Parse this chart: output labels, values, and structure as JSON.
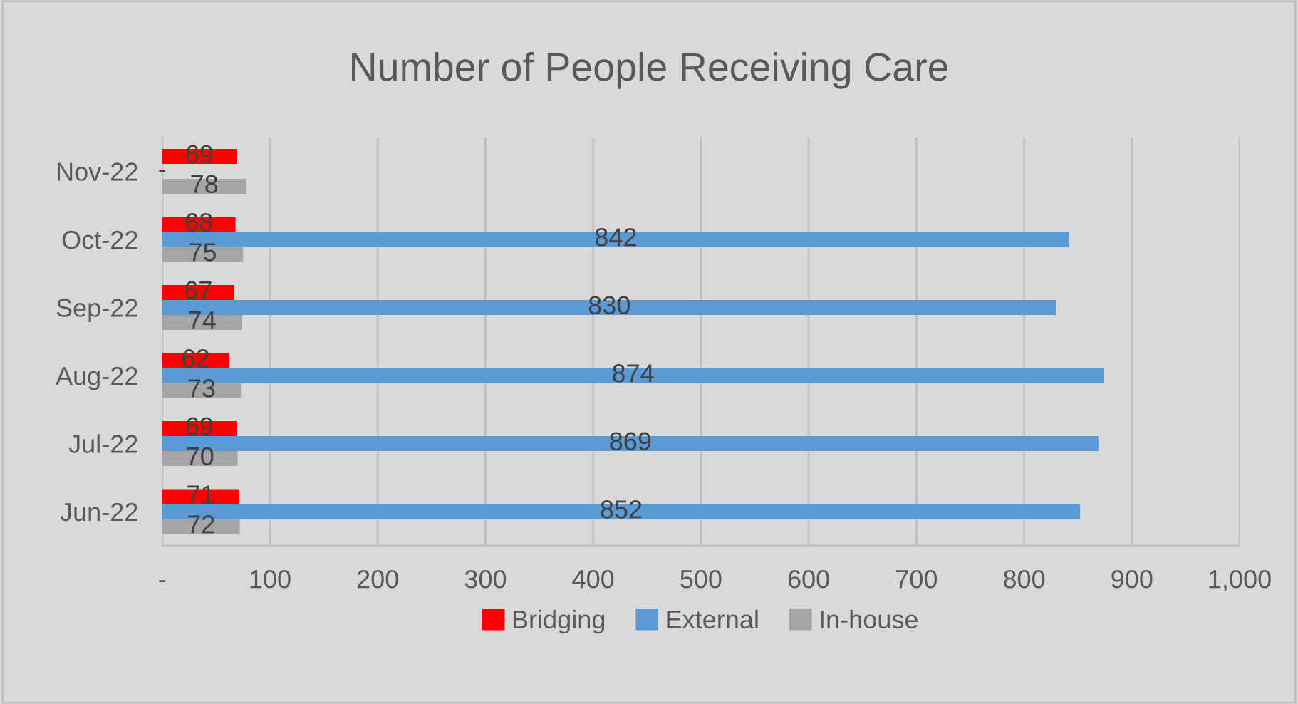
{
  "chart_data": {
    "type": "bar",
    "orientation": "horizontal",
    "title": "Number of People Receiving Care",
    "categories": [
      "Nov-22",
      "Oct-22",
      "Sep-22",
      "Aug-22",
      "Jul-22",
      "Jun-22"
    ],
    "series": [
      {
        "name": "Bridging",
        "color": "#ff0000",
        "values": [
          69,
          68,
          67,
          62,
          69,
          71
        ]
      },
      {
        "name": "External",
        "color": "#5b9bd5",
        "values": [
          0,
          842,
          830,
          874,
          869,
          852
        ],
        "value_labels": [
          "-",
          "842",
          "830",
          "874",
          "869",
          "852"
        ]
      },
      {
        "name": "In-house",
        "color": "#a5a5a5",
        "values": [
          78,
          75,
          74,
          73,
          70,
          72
        ]
      }
    ],
    "xlim": [
      0,
      1000
    ],
    "xticks": [
      {
        "value": 0,
        "label": "-"
      },
      100,
      200,
      300,
      400,
      500,
      600,
      700,
      800,
      900,
      {
        "value": 1000,
        "label": "1,000"
      }
    ],
    "grid": "x",
    "legend": "bottom",
    "data_labels": true
  }
}
